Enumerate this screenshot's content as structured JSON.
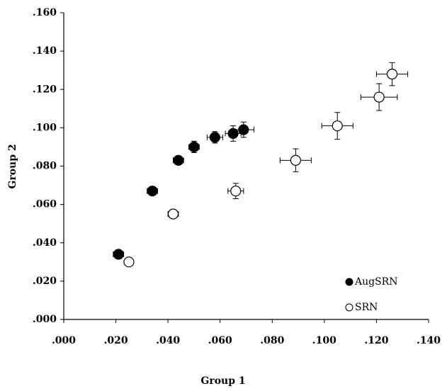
{
  "chart_data": {
    "type": "scatter",
    "x_label": "Group 1",
    "y_label": "Group 2",
    "xlim": [
      0,
      0.14
    ],
    "ylim": [
      0,
      0.16
    ],
    "xticks": [
      {
        "value": 0,
        "label": ".000"
      },
      {
        "value": 0.02,
        "label": ".020"
      },
      {
        "value": 0.04,
        "label": ".040"
      },
      {
        "value": 0.06,
        "label": ".060"
      },
      {
        "value": 0.08,
        "label": ".080"
      },
      {
        "value": 0.1,
        "label": ".100"
      },
      {
        "value": 0.12,
        "label": ".120"
      },
      {
        "value": 0.14,
        "label": ".140"
      }
    ],
    "yticks": [
      {
        "value": 0,
        "label": ".000"
      },
      {
        "value": 0.02,
        "label": ".020"
      },
      {
        "value": 0.04,
        "label": ".040"
      },
      {
        "value": 0.06,
        "label": ".060"
      },
      {
        "value": 0.08,
        "label": ".080"
      },
      {
        "value": 0.1,
        "label": ".100"
      },
      {
        "value": 0.12,
        "label": ".120"
      },
      {
        "value": 0.14,
        "label": ".140"
      },
      {
        "value": 0.16,
        "label": ".160"
      }
    ],
    "legend": "lower right",
    "series": [
      {
        "name": "AugSRN",
        "color": "#000000",
        "fill": "#000000",
        "x": [
          0.021,
          0.034,
          0.044,
          0.05,
          0.058,
          0.065,
          0.069
        ],
        "values": [
          0.034,
          0.067,
          0.083,
          0.09,
          0.095,
          0.097,
          0.099
        ],
        "xerr": [
          0.002,
          0.002,
          0.002,
          0.002,
          0.003,
          0.003,
          0.004
        ],
        "yerr": [
          0.001,
          0.001,
          0.001,
          0.003,
          0.003,
          0.004,
          0.004
        ]
      },
      {
        "name": "SRN",
        "color": "#000000",
        "fill": "#ffffff",
        "x": [
          0.025,
          0.042,
          0.066,
          0.089,
          0.105,
          0.121,
          0.126
        ],
        "values": [
          0.03,
          0.055,
          0.067,
          0.083,
          0.101,
          0.116,
          0.128
        ],
        "xerr": [
          0.001,
          0.002,
          0.003,
          0.006,
          0.006,
          0.007,
          0.006
        ],
        "yerr": [
          0.001,
          0.001,
          0.004,
          0.006,
          0.007,
          0.007,
          0.006
        ]
      }
    ]
  }
}
